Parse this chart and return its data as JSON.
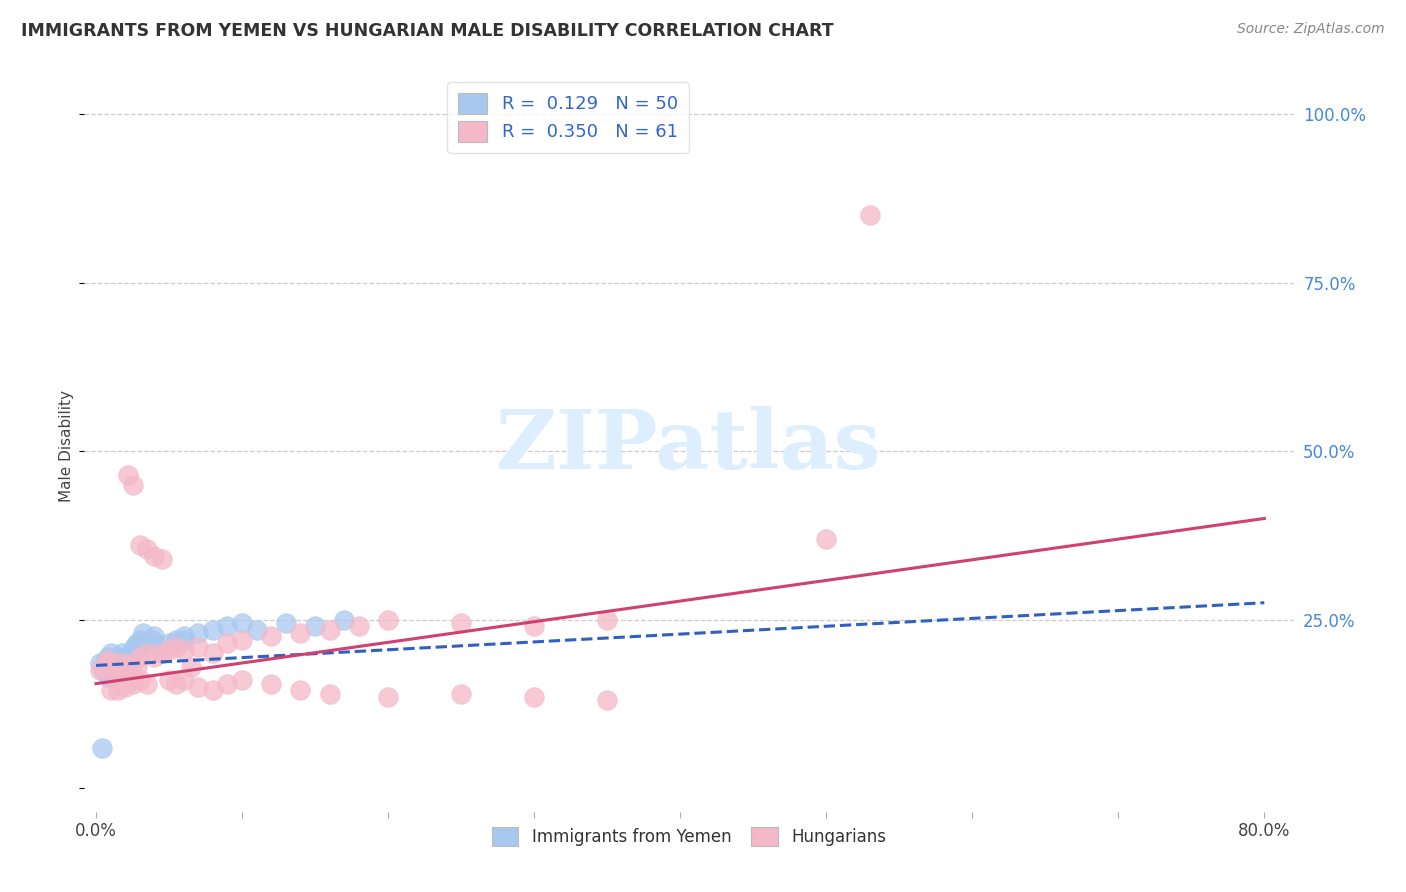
{
  "title": "IMMIGRANTS FROM YEMEN VS HUNGARIAN MALE DISABILITY CORRELATION CHART",
  "source": "Source: ZipAtlas.com",
  "ylabel": "Male Disability",
  "color_blue": "#a8c8f0",
  "color_pink": "#f4b8c8",
  "trendline_blue_color": "#3060c0",
  "trendline_pink_color": "#d04070",
  "watermark_color": "#ddeeff",
  "blue_x": [
    0.003,
    0.005,
    0.006,
    0.007,
    0.008,
    0.009,
    0.01,
    0.01,
    0.011,
    0.012,
    0.013,
    0.014,
    0.015,
    0.016,
    0.018,
    0.019,
    0.02,
    0.021,
    0.022,
    0.023,
    0.025,
    0.026,
    0.028,
    0.03,
    0.032,
    0.035,
    0.038,
    0.04,
    0.045,
    0.05,
    0.055,
    0.06,
    0.07,
    0.08,
    0.09,
    0.1,
    0.11,
    0.13,
    0.15,
    0.17,
    0.004,
    0.008,
    0.012,
    0.015,
    0.018,
    0.02,
    0.025,
    0.03,
    0.04,
    0.06
  ],
  "blue_y": [
    0.185,
    0.175,
    0.18,
    0.19,
    0.195,
    0.185,
    0.175,
    0.2,
    0.18,
    0.19,
    0.185,
    0.175,
    0.195,
    0.185,
    0.2,
    0.18,
    0.19,
    0.195,
    0.185,
    0.19,
    0.2,
    0.21,
    0.215,
    0.22,
    0.23,
    0.215,
    0.22,
    0.225,
    0.2,
    0.215,
    0.22,
    0.225,
    0.23,
    0.235,
    0.24,
    0.245,
    0.235,
    0.245,
    0.24,
    0.25,
    0.06,
    0.165,
    0.175,
    0.185,
    0.19,
    0.195,
    0.205,
    0.21,
    0.215,
    0.22
  ],
  "pink_x": [
    0.003,
    0.005,
    0.007,
    0.008,
    0.01,
    0.012,
    0.014,
    0.016,
    0.018,
    0.02,
    0.022,
    0.025,
    0.028,
    0.03,
    0.035,
    0.04,
    0.045,
    0.05,
    0.055,
    0.06,
    0.065,
    0.07,
    0.08,
    0.09,
    0.1,
    0.12,
    0.14,
    0.16,
    0.18,
    0.2,
    0.022,
    0.025,
    0.03,
    0.035,
    0.04,
    0.045,
    0.05,
    0.055,
    0.06,
    0.07,
    0.08,
    0.09,
    0.1,
    0.12,
    0.14,
    0.16,
    0.2,
    0.25,
    0.3,
    0.35,
    0.01,
    0.015,
    0.02,
    0.025,
    0.03,
    0.035,
    0.25,
    0.3,
    0.35,
    0.5,
    0.53
  ],
  "pink_y": [
    0.175,
    0.18,
    0.185,
    0.19,
    0.175,
    0.18,
    0.185,
    0.175,
    0.185,
    0.18,
    0.175,
    0.185,
    0.18,
    0.195,
    0.2,
    0.195,
    0.2,
    0.205,
    0.21,
    0.205,
    0.18,
    0.21,
    0.2,
    0.215,
    0.22,
    0.225,
    0.23,
    0.235,
    0.24,
    0.25,
    0.465,
    0.45,
    0.36,
    0.355,
    0.345,
    0.34,
    0.16,
    0.155,
    0.16,
    0.15,
    0.145,
    0.155,
    0.16,
    0.155,
    0.145,
    0.14,
    0.135,
    0.14,
    0.135,
    0.13,
    0.145,
    0.145,
    0.15,
    0.155,
    0.16,
    0.155,
    0.245,
    0.24,
    0.25,
    0.37,
    0.85
  ]
}
